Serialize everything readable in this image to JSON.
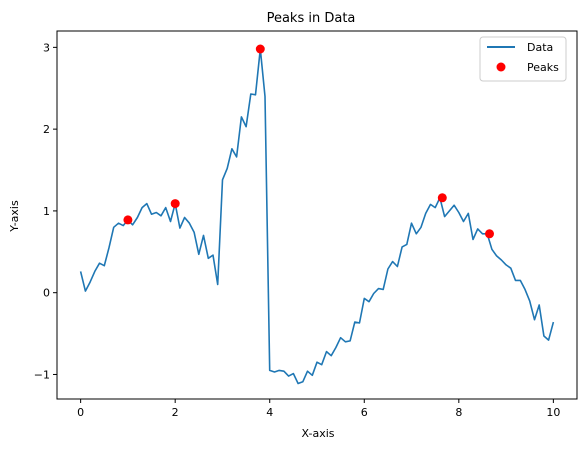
{
  "chart_data": {
    "type": "line",
    "title": "Peaks in Data",
    "xlabel": "X-axis",
    "ylabel": "Y-axis",
    "xlim": [
      -0.5,
      10.5
    ],
    "ylim": [
      -1.3,
      3.2
    ],
    "xticks": [
      0,
      2,
      4,
      6,
      8,
      10
    ],
    "yticks": [
      -1,
      0,
      1,
      2,
      3
    ],
    "grid": false,
    "legend_position": "top-right",
    "series": [
      {
        "name": "Data",
        "type": "line",
        "color": "#1f77b4",
        "x": [
          0,
          0.1,
          0.2,
          0.3,
          0.4,
          0.5,
          0.6,
          0.7,
          0.8,
          0.9,
          1.0,
          1.1,
          1.2,
          1.3,
          1.4,
          1.5,
          1.6,
          1.7,
          1.8,
          1.9,
          2.0,
          2.1,
          2.2,
          2.3,
          2.4,
          2.5,
          2.6,
          2.7,
          2.8,
          2.9,
          3.0,
          3.1,
          3.2,
          3.3,
          3.4,
          3.5,
          3.6,
          3.7,
          3.8,
          3.9,
          4.0,
          4.1,
          4.2,
          4.3,
          4.4,
          4.5,
          4.6,
          4.7,
          4.8,
          4.9,
          5.0,
          5.1,
          5.2,
          5.3,
          5.4,
          5.5,
          5.6,
          5.7,
          5.8,
          5.9,
          6.0,
          6.1,
          6.2,
          6.3,
          6.4,
          6.5,
          6.6,
          6.7,
          6.8,
          6.9,
          7.0,
          7.1,
          7.2,
          7.3,
          7.4,
          7.5,
          7.6,
          7.7,
          7.8,
          7.9,
          8.0,
          8.1,
          8.2,
          8.3,
          8.4,
          8.5,
          8.6,
          8.7,
          8.8,
          8.9,
          9.0,
          9.1,
          9.2,
          9.3,
          9.4,
          9.5,
          9.6,
          9.7,
          9.8,
          9.9,
          10.0
        ],
        "y": [
          0.26,
          0.02,
          0.13,
          0.26,
          0.36,
          0.33,
          0.55,
          0.8,
          0.85,
          0.82,
          0.89,
          0.83,
          0.92,
          1.04,
          1.09,
          0.96,
          0.98,
          0.94,
          1.04,
          0.87,
          1.09,
          0.79,
          0.92,
          0.85,
          0.74,
          0.47,
          0.7,
          0.42,
          0.46,
          0.1,
          1.38,
          1.52,
          1.76,
          1.66,
          2.15,
          2.03,
          2.43,
          2.42,
          2.98,
          2.4,
          -0.95,
          -0.97,
          -0.95,
          -0.96,
          -1.02,
          -0.99,
          -1.11,
          -1.09,
          -0.96,
          -1.01,
          -0.85,
          -0.88,
          -0.72,
          -0.77,
          -0.67,
          -0.55,
          -0.6,
          -0.59,
          -0.36,
          -0.37,
          -0.07,
          -0.11,
          -0.01,
          0.05,
          0.04,
          0.29,
          0.38,
          0.32,
          0.56,
          0.59,
          0.85,
          0.72,
          0.8,
          0.97,
          1.08,
          1.04,
          1.16,
          0.93,
          1.0,
          1.07,
          0.98,
          0.87,
          0.97,
          0.65,
          0.78,
          0.72,
          0.72,
          0.53,
          0.45,
          0.4,
          0.34,
          0.3,
          0.15,
          0.15,
          0.04,
          -0.1,
          -0.33,
          -0.15,
          -0.53,
          -0.58,
          -0.36
        ]
      },
      {
        "name": "Peaks",
        "type": "scatter",
        "color": "#ff0000",
        "x": [
          1.0,
          2.0,
          3.8,
          7.65,
          8.65
        ],
        "y": [
          0.89,
          1.09,
          2.98,
          1.16,
          0.72
        ]
      }
    ]
  }
}
